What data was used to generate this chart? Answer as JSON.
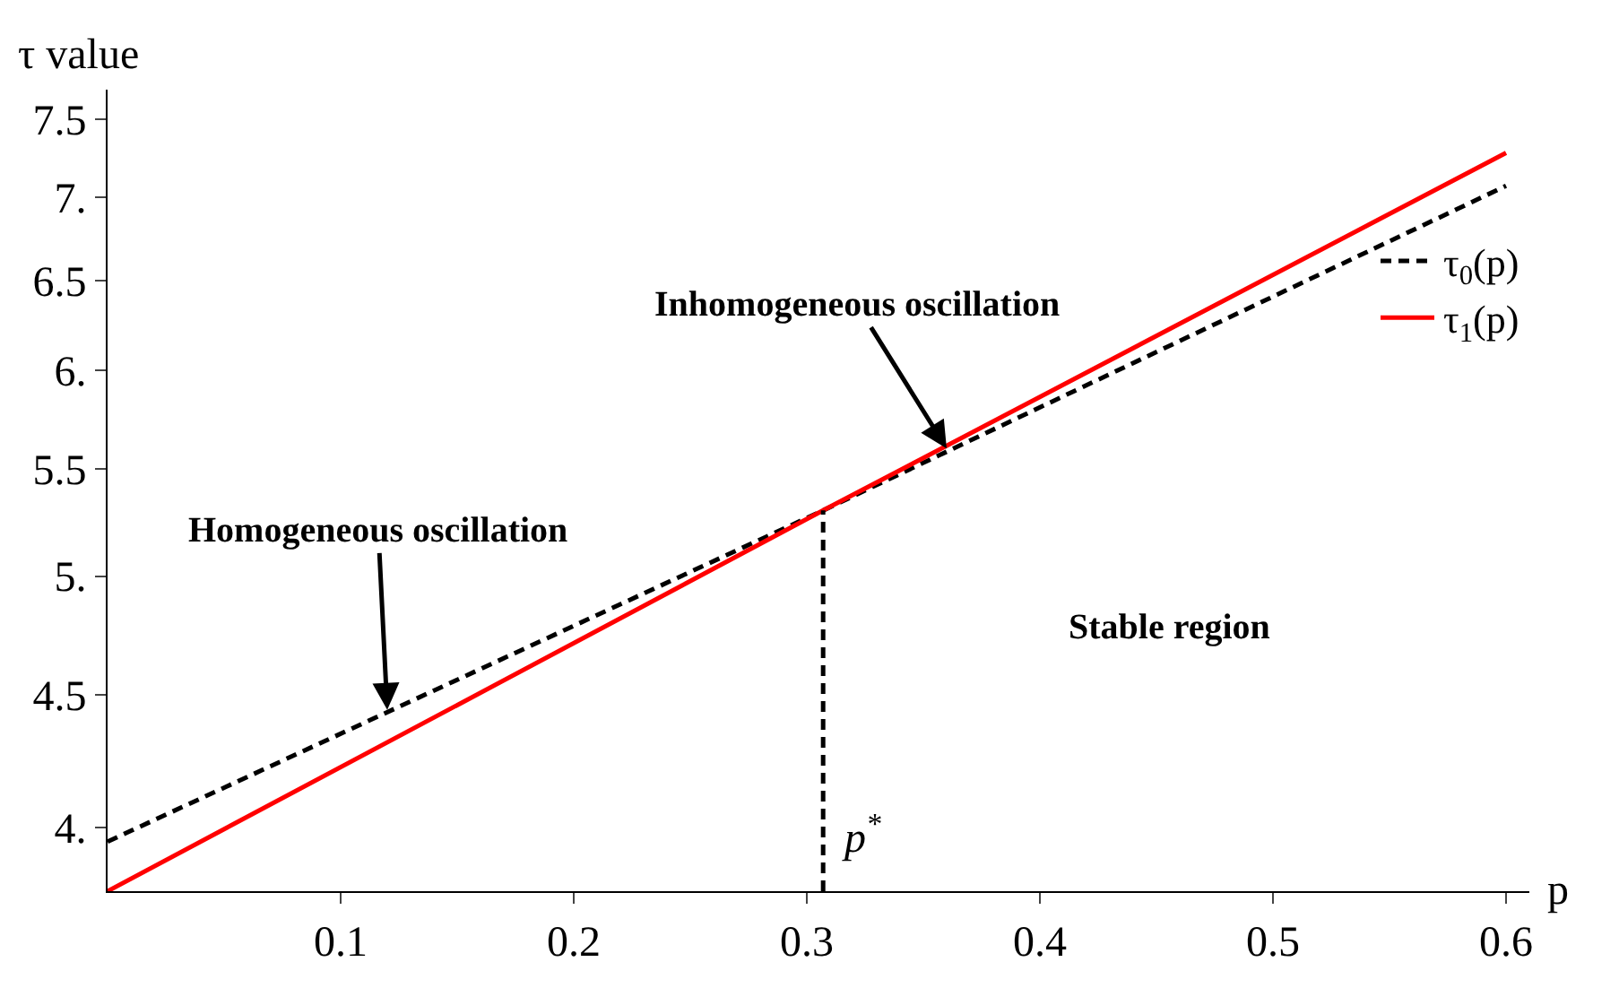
{
  "chart_data": {
    "type": "line",
    "xlabel": "p",
    "ylabel": "τ value",
    "x": [
      0,
      0.307,
      0.6
    ],
    "series": [
      {
        "name": "τ$_{0}$(p)",
        "color": "#000000",
        "line_style": "dashed",
        "values": [
          3.95,
          5.3,
          7.07
        ]
      },
      {
        "name": "τ$_{1}$(p)",
        "color": "#ff0000",
        "line_style": "solid",
        "values": [
          3.78,
          5.3,
          7.28
        ]
      },
      {
        "color": "#000000",
        "line_style": "dashed",
        "x": [
          0.307,
          0.307
        ],
        "values": [
          3.78,
          5.3
        ]
      }
    ],
    "annotations": [
      {
        "text": "Inhomogeneous oscillation",
        "x": 0.36,
        "y": 5.6
      },
      {
        "text": "Homogeneous oscillation",
        "x": 0.12,
        "y": 4.44
      },
      "Stable region",
      {
        "text": "p$^{*}$",
        "x": 0.307,
        "y": 3.78
      }
    ],
    "xlim": [
      0,
      0.61
    ],
    "xticks": [
      0.1,
      0.2,
      0.3,
      0.4,
      0.5,
      0.6
    ],
    "ylim": [
      3.78,
      7.7
    ],
    "yticks": [
      {
        "value": 4,
        "label": "4."
      },
      4.5,
      {
        "value": 5,
        "label": "5."
      },
      5.5,
      {
        "value": 6,
        "label": "6."
      },
      6.5,
      {
        "value": 7,
        "label": "7."
      },
      7.5
    ],
    "log": true,
    "legend": "right",
    "marker": "none"
  }
}
